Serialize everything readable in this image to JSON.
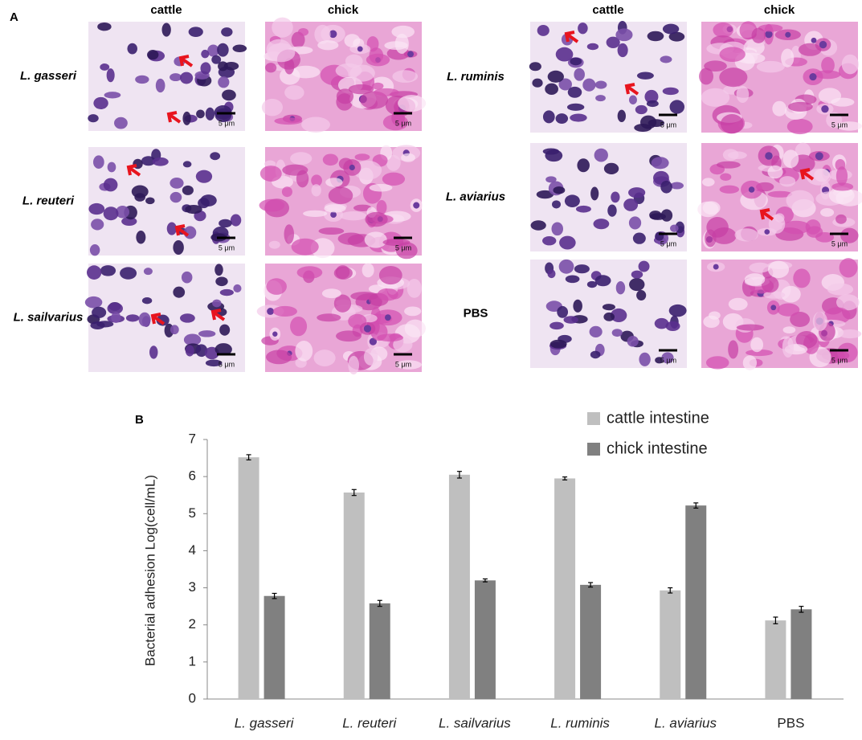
{
  "panel_a": {
    "label": "A",
    "groups": [
      {
        "columns": [
          "cattle",
          "chick"
        ],
        "rows": [
          {
            "name": "L. gasseri",
            "scale_labels": [
              "5 μm",
              "5 μm"
            ]
          },
          {
            "name": "L. reuteri",
            "scale_labels": [
              "5 μm",
              "5 μm"
            ]
          },
          {
            "name": "L. sailvarius",
            "scale_labels": [
              "5 μm",
              "5 μm"
            ]
          }
        ]
      },
      {
        "columns": [
          "cattle",
          "chick"
        ],
        "rows": [
          {
            "name": "L. ruminis",
            "scale_labels": [
              "5 μm",
              "5 μm"
            ]
          },
          {
            "name": "L. aviarius",
            "scale_labels": [
              "5 μm",
              "5 μm"
            ]
          },
          {
            "name": "PBS",
            "scale_labels": [
              "5 μm",
              "5 μm"
            ]
          }
        ]
      }
    ]
  },
  "chart_data": {
    "type": "bar",
    "panel_label": "B",
    "y_label": "Bacterial adhesion Log(cell/mL)",
    "categories": [
      "L. gasseri",
      "L. reuteri",
      "L. sailvarius",
      "L. ruminis",
      "L. aviarius",
      "PBS"
    ],
    "series": [
      {
        "name": "cattle intestine",
        "color": "#bfbfbf",
        "values": [
          6.52,
          5.57,
          6.05,
          5.95,
          2.93,
          2.12
        ],
        "errors": [
          0.07,
          0.08,
          0.09,
          0.04,
          0.07,
          0.09
        ]
      },
      {
        "name": "chick intestine",
        "color": "#808080",
        "values": [
          2.78,
          2.58,
          3.2,
          3.08,
          5.22,
          2.42
        ],
        "errors": [
          0.07,
          0.08,
          0.04,
          0.06,
          0.07,
          0.08
        ]
      }
    ],
    "ylim": [
      0,
      7
    ],
    "yticks": [
      0,
      1,
      2,
      3,
      4,
      5,
      6,
      7
    ],
    "grid": false,
    "legend": "top-right"
  }
}
